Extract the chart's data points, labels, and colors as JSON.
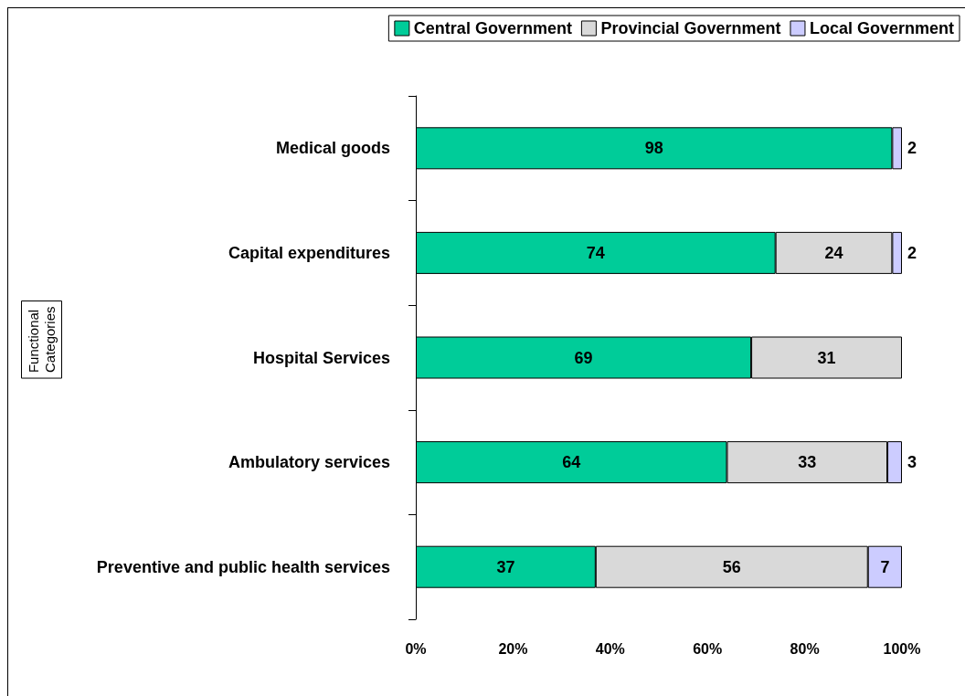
{
  "chart_data": {
    "type": "bar",
    "orientation": "horizontal",
    "stacked": true,
    "annotations": [
      "Functional\nCategories"
    ],
    "categories": [
      "Medical goods",
      "Capital expenditures",
      "Hospital Services",
      "Ambulatory services",
      "Preventive and public health services"
    ],
    "series": [
      {
        "name": "Central Government",
        "color": "#00cc99",
        "values": [
          98,
          74,
          69,
          64,
          37
        ]
      },
      {
        "name": "Provincial Government",
        "color": "#d9d9d9",
        "values": [
          null,
          24,
          31,
          33,
          56
        ]
      },
      {
        "name": "Local Government",
        "color": "#ccccff",
        "values": [
          2,
          2,
          null,
          3,
          7
        ]
      }
    ],
    "xlim": [
      0,
      100
    ],
    "xticks": [
      {
        "value": 0,
        "label": "0%"
      },
      {
        "value": 20,
        "label": "20%"
      },
      {
        "value": 40,
        "label": "40%"
      },
      {
        "value": 60,
        "label": "60%"
      },
      {
        "value": 80,
        "label": "80%"
      },
      {
        "value": 100,
        "label": "100%"
      }
    ],
    "data_labels": true,
    "grid": false,
    "legend": "top right"
  }
}
